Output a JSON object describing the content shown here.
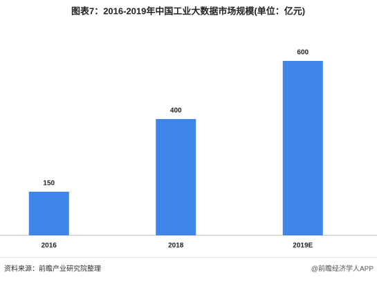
{
  "chart_data": {
    "type": "bar",
    "title": "图表7：2016-2019年中国工业大数据市场规模(单位：亿元)",
    "categories": [
      "2016",
      "2018",
      "2019E"
    ],
    "values": [
      150,
      400,
      600
    ],
    "color": "#3f86e8",
    "source": "资料来源：前瞻产业研究院整理",
    "watermark": "@前瞻经济学人APP"
  }
}
